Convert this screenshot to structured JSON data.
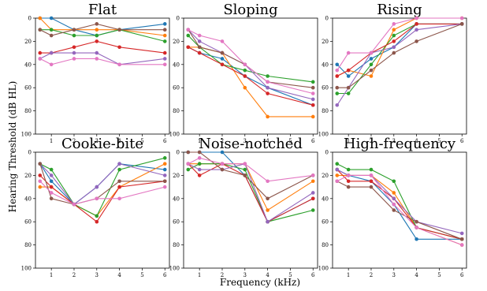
{
  "figure": {
    "xlabel": "Frequency (kHz)",
    "ylabel": "Hearing Threshold (dB HL)"
  },
  "colors": [
    "#1f77b4",
    "#ff7f0e",
    "#2ca02c",
    "#d62728",
    "#9467bd",
    "#8c564b",
    "#e377c2"
  ],
  "chart_data": [
    {
      "type": "line",
      "title": "Flat",
      "x": [
        0.5,
        1,
        2,
        3,
        4,
        6
      ],
      "xticks": [
        1,
        2,
        3,
        4,
        5,
        6
      ],
      "xlim": [
        0.3,
        6.2
      ],
      "yticks": [
        0,
        20,
        40,
        60,
        80,
        100
      ],
      "ylim": [
        100,
        0
      ],
      "y_inverted": true,
      "series": [
        {
          "color": "#1f77b4",
          "values": [
            0,
            0,
            10,
            15,
            10,
            5
          ]
        },
        {
          "color": "#ff7f0e",
          "values": [
            0,
            10,
            10,
            10,
            10,
            15
          ]
        },
        {
          "color": "#2ca02c",
          "values": [
            10,
            10,
            15,
            15,
            10,
            20
          ]
        },
        {
          "color": "#d62728",
          "values": [
            30,
            30,
            25,
            20,
            25,
            30
          ]
        },
        {
          "color": "#9467bd",
          "values": [
            35,
            30,
            30,
            30,
            40,
            35
          ]
        },
        {
          "color": "#8c564b",
          "values": [
            10,
            15,
            10,
            5,
            10,
            10
          ]
        },
        {
          "color": "#e377c2",
          "values": [
            35,
            40,
            35,
            35,
            40,
            40
          ]
        }
      ]
    },
    {
      "type": "line",
      "title": "Sloping",
      "x": [
        0.5,
        1,
        2,
        3,
        4,
        6
      ],
      "xticks": [
        1,
        2,
        3,
        4,
        5,
        6
      ],
      "xlim": [
        0.3,
        6.2
      ],
      "yticks": [
        0,
        20,
        40,
        60,
        80,
        100
      ],
      "ylim": [
        100,
        0
      ],
      "y_inverted": true,
      "series": [
        {
          "color": "#1f77b4",
          "values": [
            25,
            30,
            35,
            50,
            60,
            75
          ]
        },
        {
          "color": "#ff7f0e",
          "values": [
            25,
            25,
            30,
            60,
            85,
            85
          ]
        },
        {
          "color": "#2ca02c",
          "values": [
            15,
            25,
            40,
            45,
            50,
            55
          ]
        },
        {
          "color": "#d62728",
          "values": [
            25,
            30,
            40,
            50,
            65,
            75
          ]
        },
        {
          "color": "#9467bd",
          "values": [
            10,
            20,
            30,
            40,
            60,
            70
          ]
        },
        {
          "color": "#8c564b",
          "values": [
            10,
            25,
            30,
            40,
            55,
            60
          ]
        },
        {
          "color": "#e377c2",
          "values": [
            10,
            15,
            20,
            40,
            55,
            65
          ]
        }
      ]
    },
    {
      "type": "line",
      "title": "Rising",
      "x": [
        0.5,
        1,
        2,
        3,
        4,
        6
      ],
      "xticks": [
        1,
        2,
        3,
        4,
        5,
        6
      ],
      "xlim": [
        0.3,
        6.2
      ],
      "yticks": [
        0,
        20,
        40,
        60,
        80,
        100
      ],
      "ylim": [
        100,
        0
      ],
      "y_inverted": true,
      "series": [
        {
          "color": "#1f77b4",
          "values": [
            40,
            50,
            35,
            25,
            5,
            5
          ]
        },
        {
          "color": "#ff7f0e",
          "values": [
            50,
            45,
            50,
            10,
            0,
            0
          ]
        },
        {
          "color": "#2ca02c",
          "values": [
            65,
            65,
            40,
            15,
            5,
            5
          ]
        },
        {
          "color": "#d62728",
          "values": [
            50,
            45,
            30,
            20,
            5,
            5
          ]
        },
        {
          "color": "#9467bd",
          "values": [
            75,
            60,
            30,
            25,
            10,
            5
          ]
        },
        {
          "color": "#8c564b",
          "values": [
            60,
            60,
            45,
            30,
            20,
            5
          ]
        },
        {
          "color": "#e377c2",
          "values": [
            45,
            30,
            30,
            5,
            0,
            0
          ]
        }
      ]
    },
    {
      "type": "line",
      "title": "Cookie-bite",
      "x": [
        0.5,
        1,
        2,
        3,
        4,
        6
      ],
      "xticks": [
        1,
        2,
        3,
        4,
        5,
        6
      ],
      "xlim": [
        0.3,
        6.2
      ],
      "yticks": [
        0,
        20,
        40,
        60,
        80,
        100
      ],
      "ylim": [
        100,
        0
      ],
      "y_inverted": true,
      "series": [
        {
          "color": "#1f77b4",
          "values": [
            10,
            25,
            45,
            30,
            10,
            15
          ]
        },
        {
          "color": "#ff7f0e",
          "values": [
            30,
            30,
            45,
            55,
            30,
            10
          ]
        },
        {
          "color": "#2ca02c",
          "values": [
            10,
            15,
            45,
            55,
            15,
            5
          ]
        },
        {
          "color": "#d62728",
          "values": [
            20,
            30,
            45,
            60,
            30,
            25
          ]
        },
        {
          "color": "#9467bd",
          "values": [
            10,
            20,
            45,
            30,
            10,
            20
          ]
        },
        {
          "color": "#8c564b",
          "values": [
            10,
            40,
            45,
            40,
            25,
            25
          ]
        },
        {
          "color": "#e377c2",
          "values": [
            25,
            35,
            45,
            40,
            40,
            30
          ]
        }
      ]
    },
    {
      "type": "line",
      "title": "Noise-notched",
      "x": [
        0.5,
        1,
        2,
        3,
        4,
        6
      ],
      "xticks": [
        1,
        2,
        3,
        4,
        5,
        6
      ],
      "xlim": [
        0.3,
        6.2
      ],
      "yticks": [
        0,
        20,
        40,
        60,
        80,
        100
      ],
      "ylim": [
        100,
        0
      ],
      "y_inverted": true,
      "series": [
        {
          "color": "#1f77b4",
          "values": [
            0,
            0,
            0,
            20,
            60,
            40
          ]
        },
        {
          "color": "#ff7f0e",
          "values": [
            10,
            10,
            10,
            10,
            50,
            25
          ]
        },
        {
          "color": "#2ca02c",
          "values": [
            15,
            10,
            10,
            15,
            60,
            50
          ]
        },
        {
          "color": "#d62728",
          "values": [
            10,
            20,
            10,
            20,
            60,
            40
          ]
        },
        {
          "color": "#9467bd",
          "values": [
            10,
            15,
            15,
            10,
            60,
            35
          ]
        },
        {
          "color": "#8c564b",
          "values": [
            0,
            0,
            15,
            20,
            40,
            20
          ]
        },
        {
          "color": "#e377c2",
          "values": [
            10,
            5,
            10,
            10,
            25,
            20
          ]
        }
      ]
    },
    {
      "type": "line",
      "title": "High-frequency",
      "x": [
        0.5,
        1,
        2,
        3,
        4,
        6
      ],
      "xticks": [
        1,
        2,
        3,
        4,
        5,
        6
      ],
      "xlim": [
        0.3,
        6.2
      ],
      "yticks": [
        0,
        20,
        40,
        60,
        80,
        100
      ],
      "ylim": [
        100,
        0
      ],
      "y_inverted": true,
      "series": [
        {
          "color": "#1f77b4",
          "values": [
            15,
            20,
            25,
            45,
            75,
            75
          ]
        },
        {
          "color": "#ff7f0e",
          "values": [
            20,
            20,
            20,
            35,
            65,
            80
          ]
        },
        {
          "color": "#2ca02c",
          "values": [
            10,
            15,
            15,
            25,
            65,
            75
          ]
        },
        {
          "color": "#d62728",
          "values": [
            15,
            25,
            25,
            40,
            65,
            75
          ]
        },
        {
          "color": "#9467bd",
          "values": [
            15,
            20,
            20,
            40,
            60,
            70
          ]
        },
        {
          "color": "#8c564b",
          "values": [
            25,
            30,
            30,
            50,
            60,
            75
          ]
        },
        {
          "color": "#e377c2",
          "values": [
            25,
            20,
            20,
            45,
            65,
            80
          ]
        }
      ]
    }
  ]
}
